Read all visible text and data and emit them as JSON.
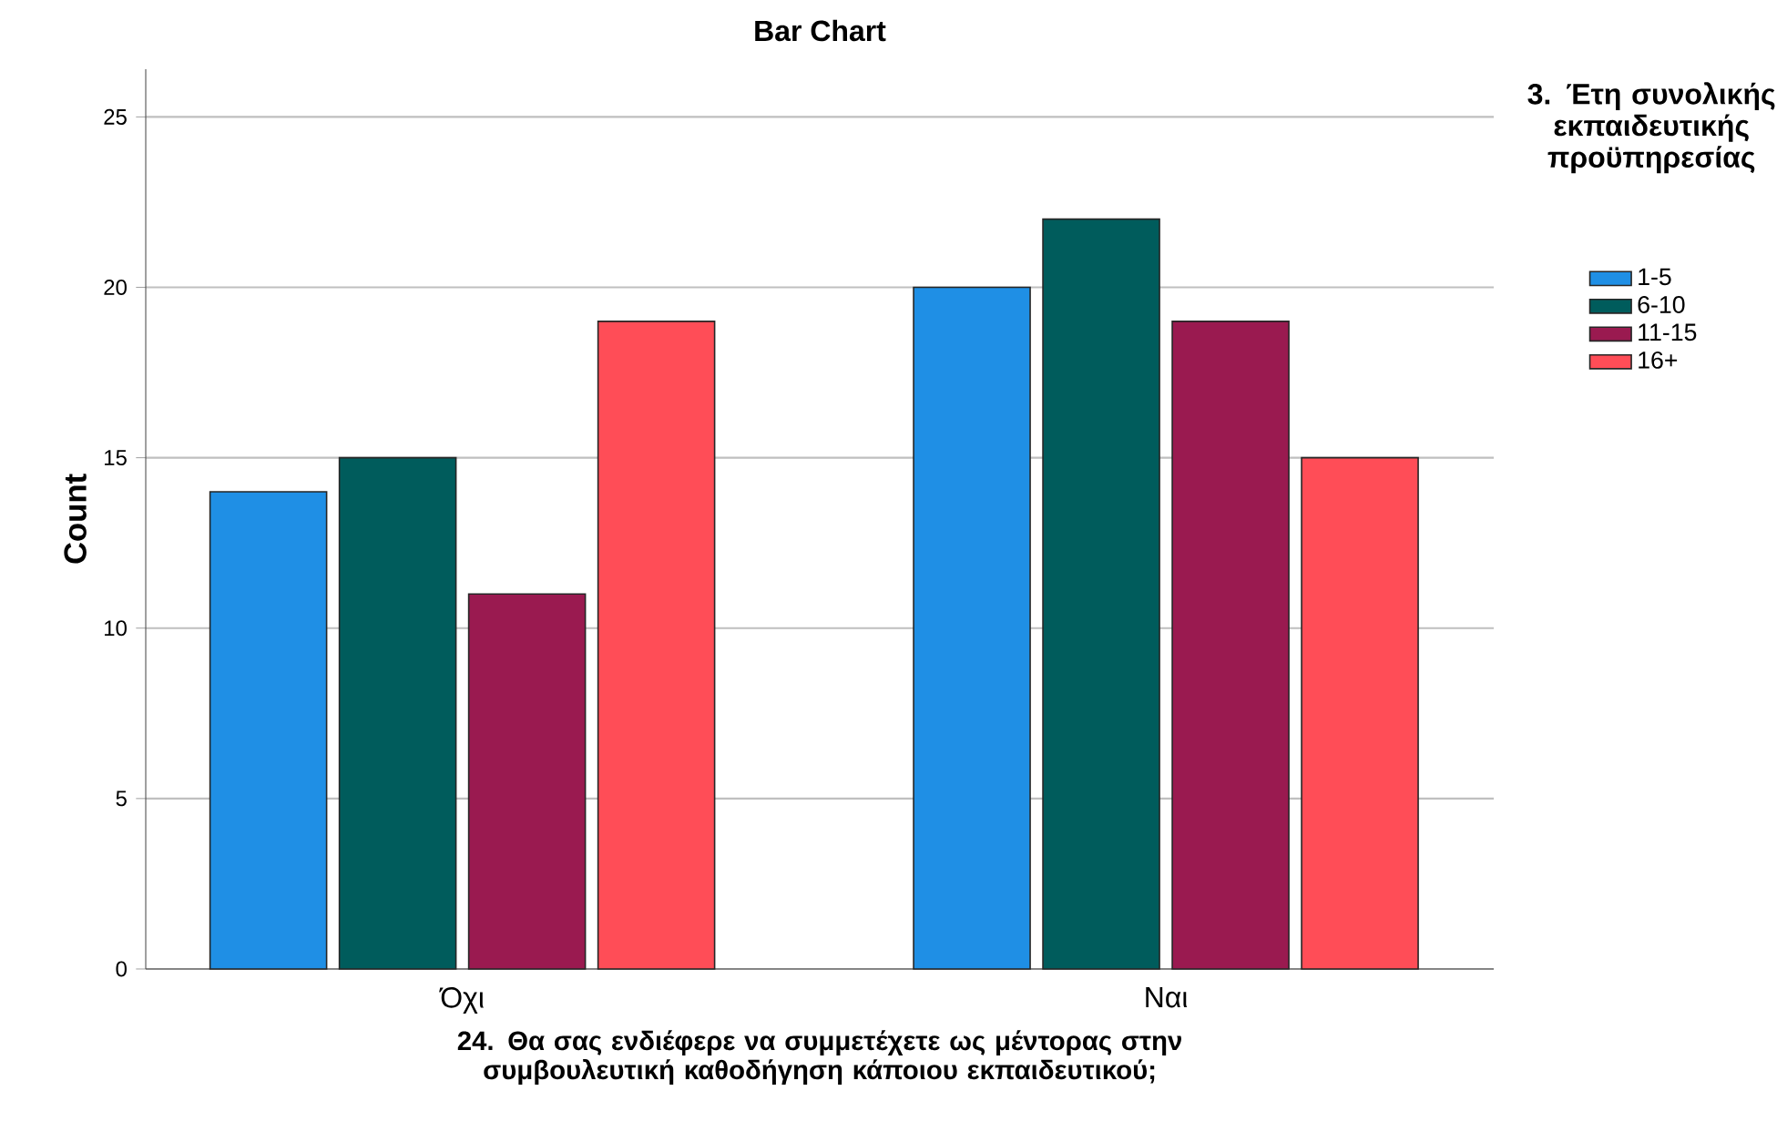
{
  "chart_data": {
    "type": "bar",
    "title": "Bar Chart",
    "xlabel": "24. Θα σας ενδιέφερε να συμμετέχετε ως μέντορας στην συμβουλευτική καθοδήγηση κάποιου εκπαιδευτικού;",
    "ylabel": "Count",
    "legend_title": "3. Έτη συνολικής εκπαιδευτικής προϋπηρεσίας",
    "categories": [
      "Όχι",
      "Ναι"
    ],
    "series": [
      {
        "name": "1-5",
        "color": "#1f8fe5",
        "values": [
          14,
          20
        ]
      },
      {
        "name": "6-10",
        "color": "#005c5c",
        "values": [
          15,
          22
        ]
      },
      {
        "name": "11-15",
        "color": "#9a1a50",
        "values": [
          11,
          19
        ]
      },
      {
        "name": "16+",
        "color": "#ff4d57",
        "values": [
          19,
          15
        ]
      }
    ],
    "ylim": [
      0,
      26.4
    ],
    "yticks": [
      0,
      5,
      10,
      15,
      20,
      25
    ],
    "grid": "y",
    "legend": "top right"
  }
}
